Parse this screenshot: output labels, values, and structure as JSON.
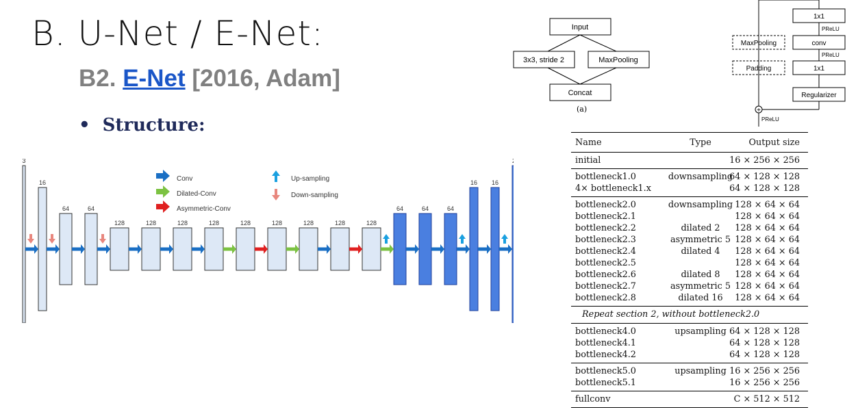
{
  "slide": {
    "title": "B. U-Net / E-Net:",
    "subtitle_prefix": "B2. ",
    "subtitle_link": "E-Net",
    "subtitle_suffix": " [2016, Adam]",
    "bullet": "Structure:"
  },
  "arch": {
    "legend": {
      "conv": "Conv",
      "dilated": "Dilated-Conv",
      "asym": "Asymmetric-Conv",
      "up": "Up-sampling",
      "down": "Down-sampling"
    },
    "layers": [
      {
        "label": "3",
        "kind": "io"
      },
      {
        "label": "16",
        "kind": "light"
      },
      {
        "label": "64",
        "kind": "light"
      },
      {
        "label": "64",
        "kind": "light"
      },
      {
        "label": "128",
        "kind": "light"
      },
      {
        "label": "128",
        "kind": "light"
      },
      {
        "label": "128",
        "kind": "light"
      },
      {
        "label": "128",
        "kind": "light"
      },
      {
        "label": "128",
        "kind": "light"
      },
      {
        "label": "128",
        "kind": "light"
      },
      {
        "label": "128",
        "kind": "light"
      },
      {
        "label": "128",
        "kind": "light"
      },
      {
        "label": "128",
        "kind": "light"
      },
      {
        "label": "64",
        "kind": "dark"
      },
      {
        "label": "64",
        "kind": "dark"
      },
      {
        "label": "64",
        "kind": "dark"
      },
      {
        "label": "16",
        "kind": "dark"
      },
      {
        "label": "16",
        "kind": "dark"
      },
      {
        "label": "2",
        "kind": "darkio"
      }
    ],
    "arrows": [
      "conv",
      "conv",
      "conv",
      "conv",
      "conv",
      "conv",
      "conv",
      "dilated",
      "asym",
      "dilated",
      "conv",
      "asym",
      "dilated",
      "conv",
      "conv",
      "conv",
      "conv",
      "conv",
      "conv"
    ],
    "markers": [
      "down",
      "down",
      "",
      "down",
      "",
      "",
      "",
      "",
      "",
      "",
      "",
      "",
      "up",
      "",
      "",
      "up",
      "",
      "up",
      ""
    ],
    "colors": {
      "conv": "#1a6fc4",
      "dilated": "#7cc242",
      "asym": "#e02020",
      "up": "#1aa0e0",
      "down": "#e8877e",
      "light": "#dde8f6",
      "dark": "#4a7fe0"
    }
  },
  "blocks": {
    "input": "Input",
    "conv3": "3x3, stride 2",
    "maxpool_a": "MaxPooling",
    "concat": "Concat",
    "caption_a": "(a)",
    "maxpool_b": "MaxPooling",
    "padding": "Padding",
    "b1": "1x1",
    "b2": "conv",
    "b3": "1x1",
    "reg": "Regularizer",
    "prelu1": "PReLU",
    "prelu2": "PReLU",
    "prelu3": "PReLU",
    "plus": "+"
  },
  "table": {
    "headers": {
      "name": "Name",
      "type": "Type",
      "output": "Output size"
    },
    "sections": [
      [
        {
          "name": "initial",
          "type": "",
          "output": "16 × 256 × 256"
        }
      ],
      [
        {
          "name": "bottleneck1.0",
          "type": "downsampling",
          "output": "64 × 128 × 128"
        },
        {
          "name": "4× bottleneck1.x",
          "type": "",
          "output": "64 × 128 × 128"
        }
      ],
      [
        {
          "name": "bottleneck2.0",
          "type": "downsampling",
          "output": "128 × 64 × 64"
        },
        {
          "name": "bottleneck2.1",
          "type": "",
          "output": "128 × 64 × 64"
        },
        {
          "name": "bottleneck2.2",
          "type": "dilated 2",
          "output": "128 × 64 × 64"
        },
        {
          "name": "bottleneck2.3",
          "type": "asymmetric 5",
          "output": "128 × 64 × 64"
        },
        {
          "name": "bottleneck2.4",
          "type": "dilated 4",
          "output": "128 × 64 × 64"
        },
        {
          "name": "bottleneck2.5",
          "type": "",
          "output": "128 × 64 × 64"
        },
        {
          "name": "bottleneck2.6",
          "type": "dilated 8",
          "output": "128 × 64 × 64"
        },
        {
          "name": "bottleneck2.7",
          "type": "asymmetric 5",
          "output": "128 × 64 × 64"
        },
        {
          "name": "bottleneck2.8",
          "type": "dilated 16",
          "output": "128 × 64 × 64"
        }
      ],
      [
        {
          "note": "Repeat section 2, without bottleneck2.0"
        }
      ],
      [
        {
          "name": "bottleneck4.0",
          "type": "upsampling",
          "output": "64 × 128 × 128"
        },
        {
          "name": "bottleneck4.1",
          "type": "",
          "output": "64 × 128 × 128"
        },
        {
          "name": "bottleneck4.2",
          "type": "",
          "output": "64 × 128 × 128"
        }
      ],
      [
        {
          "name": "bottleneck5.0",
          "type": "upsampling",
          "output": "16 × 256 × 256"
        },
        {
          "name": "bottleneck5.1",
          "type": "",
          "output": "16 × 256 × 256"
        }
      ],
      [
        {
          "name": "fullconv",
          "type": "",
          "output": "C × 512 × 512"
        }
      ]
    ]
  }
}
